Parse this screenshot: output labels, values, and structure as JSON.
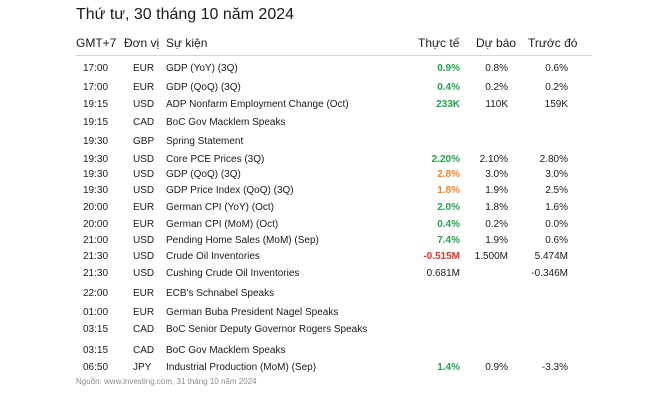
{
  "title": "Thứ tư, 30 tháng 10 năm 2024",
  "columns": {
    "time": "GMT+7",
    "currency": "Đơn vị",
    "event": "Sự kiện",
    "actual": "Thực tế",
    "forecast": "Dự báo",
    "previous": "Trước đó"
  },
  "colors": {
    "green": "#22a34a",
    "orange": "#f0852c",
    "red": "#e0352e",
    "text": "#1a1a1a"
  },
  "rows": [
    {
      "time": "17:00",
      "currency": "EUR",
      "event": "GDP (YoY) (3Q)",
      "actual": "0.9%",
      "actual_color": "green",
      "forecast": "0.8%",
      "previous": "0.6%"
    },
    {
      "time": "17:00",
      "currency": "EUR",
      "event": "GDP (QoQ) (3Q)",
      "actual": "0.4%",
      "actual_color": "green",
      "forecast": "0.2%",
      "previous": "0.2%"
    },
    {
      "time": "19:15",
      "currency": "USD",
      "event": "ADP Nonfarm Employment Change (Oct)",
      "actual": "233K",
      "actual_color": "green",
      "forecast": "110K",
      "previous": "159K"
    },
    {
      "time": "19:15",
      "currency": "CAD",
      "event": "BoC Gov Macklem Speaks",
      "actual": "",
      "actual_color": "",
      "forecast": "",
      "previous": ""
    },
    {
      "time": "19:30",
      "currency": "GBP",
      "event": "Spring Statement",
      "actual": "",
      "actual_color": "",
      "forecast": "",
      "previous": ""
    },
    {
      "time": "19:30",
      "currency": "USD",
      "event": "Core PCE Prices (3Q)",
      "actual": "2.20%",
      "actual_color": "green",
      "forecast": "2.10%",
      "previous": "2.80%"
    },
    {
      "time": "19:30",
      "currency": "USD",
      "event": "GDP (QoQ) (3Q)",
      "actual": "2.8%",
      "actual_color": "orange",
      "forecast": "3.0%",
      "previous": "3.0%"
    },
    {
      "time": "19:30",
      "currency": "USD",
      "event": "GDP Price Index (QoQ) (3Q)",
      "actual": "1.8%",
      "actual_color": "orange",
      "forecast": "1.9%",
      "previous": "2.5%"
    },
    {
      "time": "20:00",
      "currency": "EUR",
      "event": "German CPI (YoY) (Oct)",
      "actual": "2.0%",
      "actual_color": "green",
      "forecast": "1.8%",
      "previous": "1.6%"
    },
    {
      "time": "20:00",
      "currency": "EUR",
      "event": "German CPI (MoM) (Oct)",
      "actual": "0.4%",
      "actual_color": "green",
      "forecast": "0.2%",
      "previous": "0.0%"
    },
    {
      "time": "21:00",
      "currency": "USD",
      "event": "Pending Home Sales (MoM) (Sep)",
      "actual": "7.4%",
      "actual_color": "green",
      "forecast": "1.9%",
      "previous": "0.6%"
    },
    {
      "time": "21:30",
      "currency": "USD",
      "event": "Crude Oil Inventories",
      "actual": "-0.515M",
      "actual_color": "red",
      "forecast": "1.500M",
      "previous": "5.474M"
    },
    {
      "time": "21:30",
      "currency": "USD",
      "event": "Cushing Crude Oil Inventories",
      "actual": "0.681M",
      "actual_color": "",
      "forecast": "",
      "previous": "-0.346M"
    },
    {
      "time": "22:00",
      "currency": "EUR",
      "event": "ECB's Schnabel Speaks",
      "actual": "",
      "actual_color": "",
      "forecast": "",
      "previous": ""
    },
    {
      "time": "01:00",
      "currency": "EUR",
      "event": "German Buba President Nagel Speaks",
      "actual": "",
      "actual_color": "",
      "forecast": "",
      "previous": ""
    },
    {
      "time": "03:15",
      "currency": "CAD",
      "event": "BoC Senior Deputy Governor Rogers Speaks",
      "actual": "",
      "actual_color": "",
      "forecast": "",
      "previous": ""
    },
    {
      "time": "03:15",
      "currency": "CAD",
      "event": "BoC Gov Macklem Speaks",
      "actual": "",
      "actual_color": "",
      "forecast": "",
      "previous": ""
    },
    {
      "time": "06:50",
      "currency": "JPY",
      "event": "Industrial Production (MoM) (Sep)",
      "actual": "1.4%",
      "actual_color": "green",
      "forecast": "0.9%",
      "previous": "-3.3%"
    }
  ],
  "footer": "Nguồn: www.investing.com, 31 tháng 10 năm 2024"
}
